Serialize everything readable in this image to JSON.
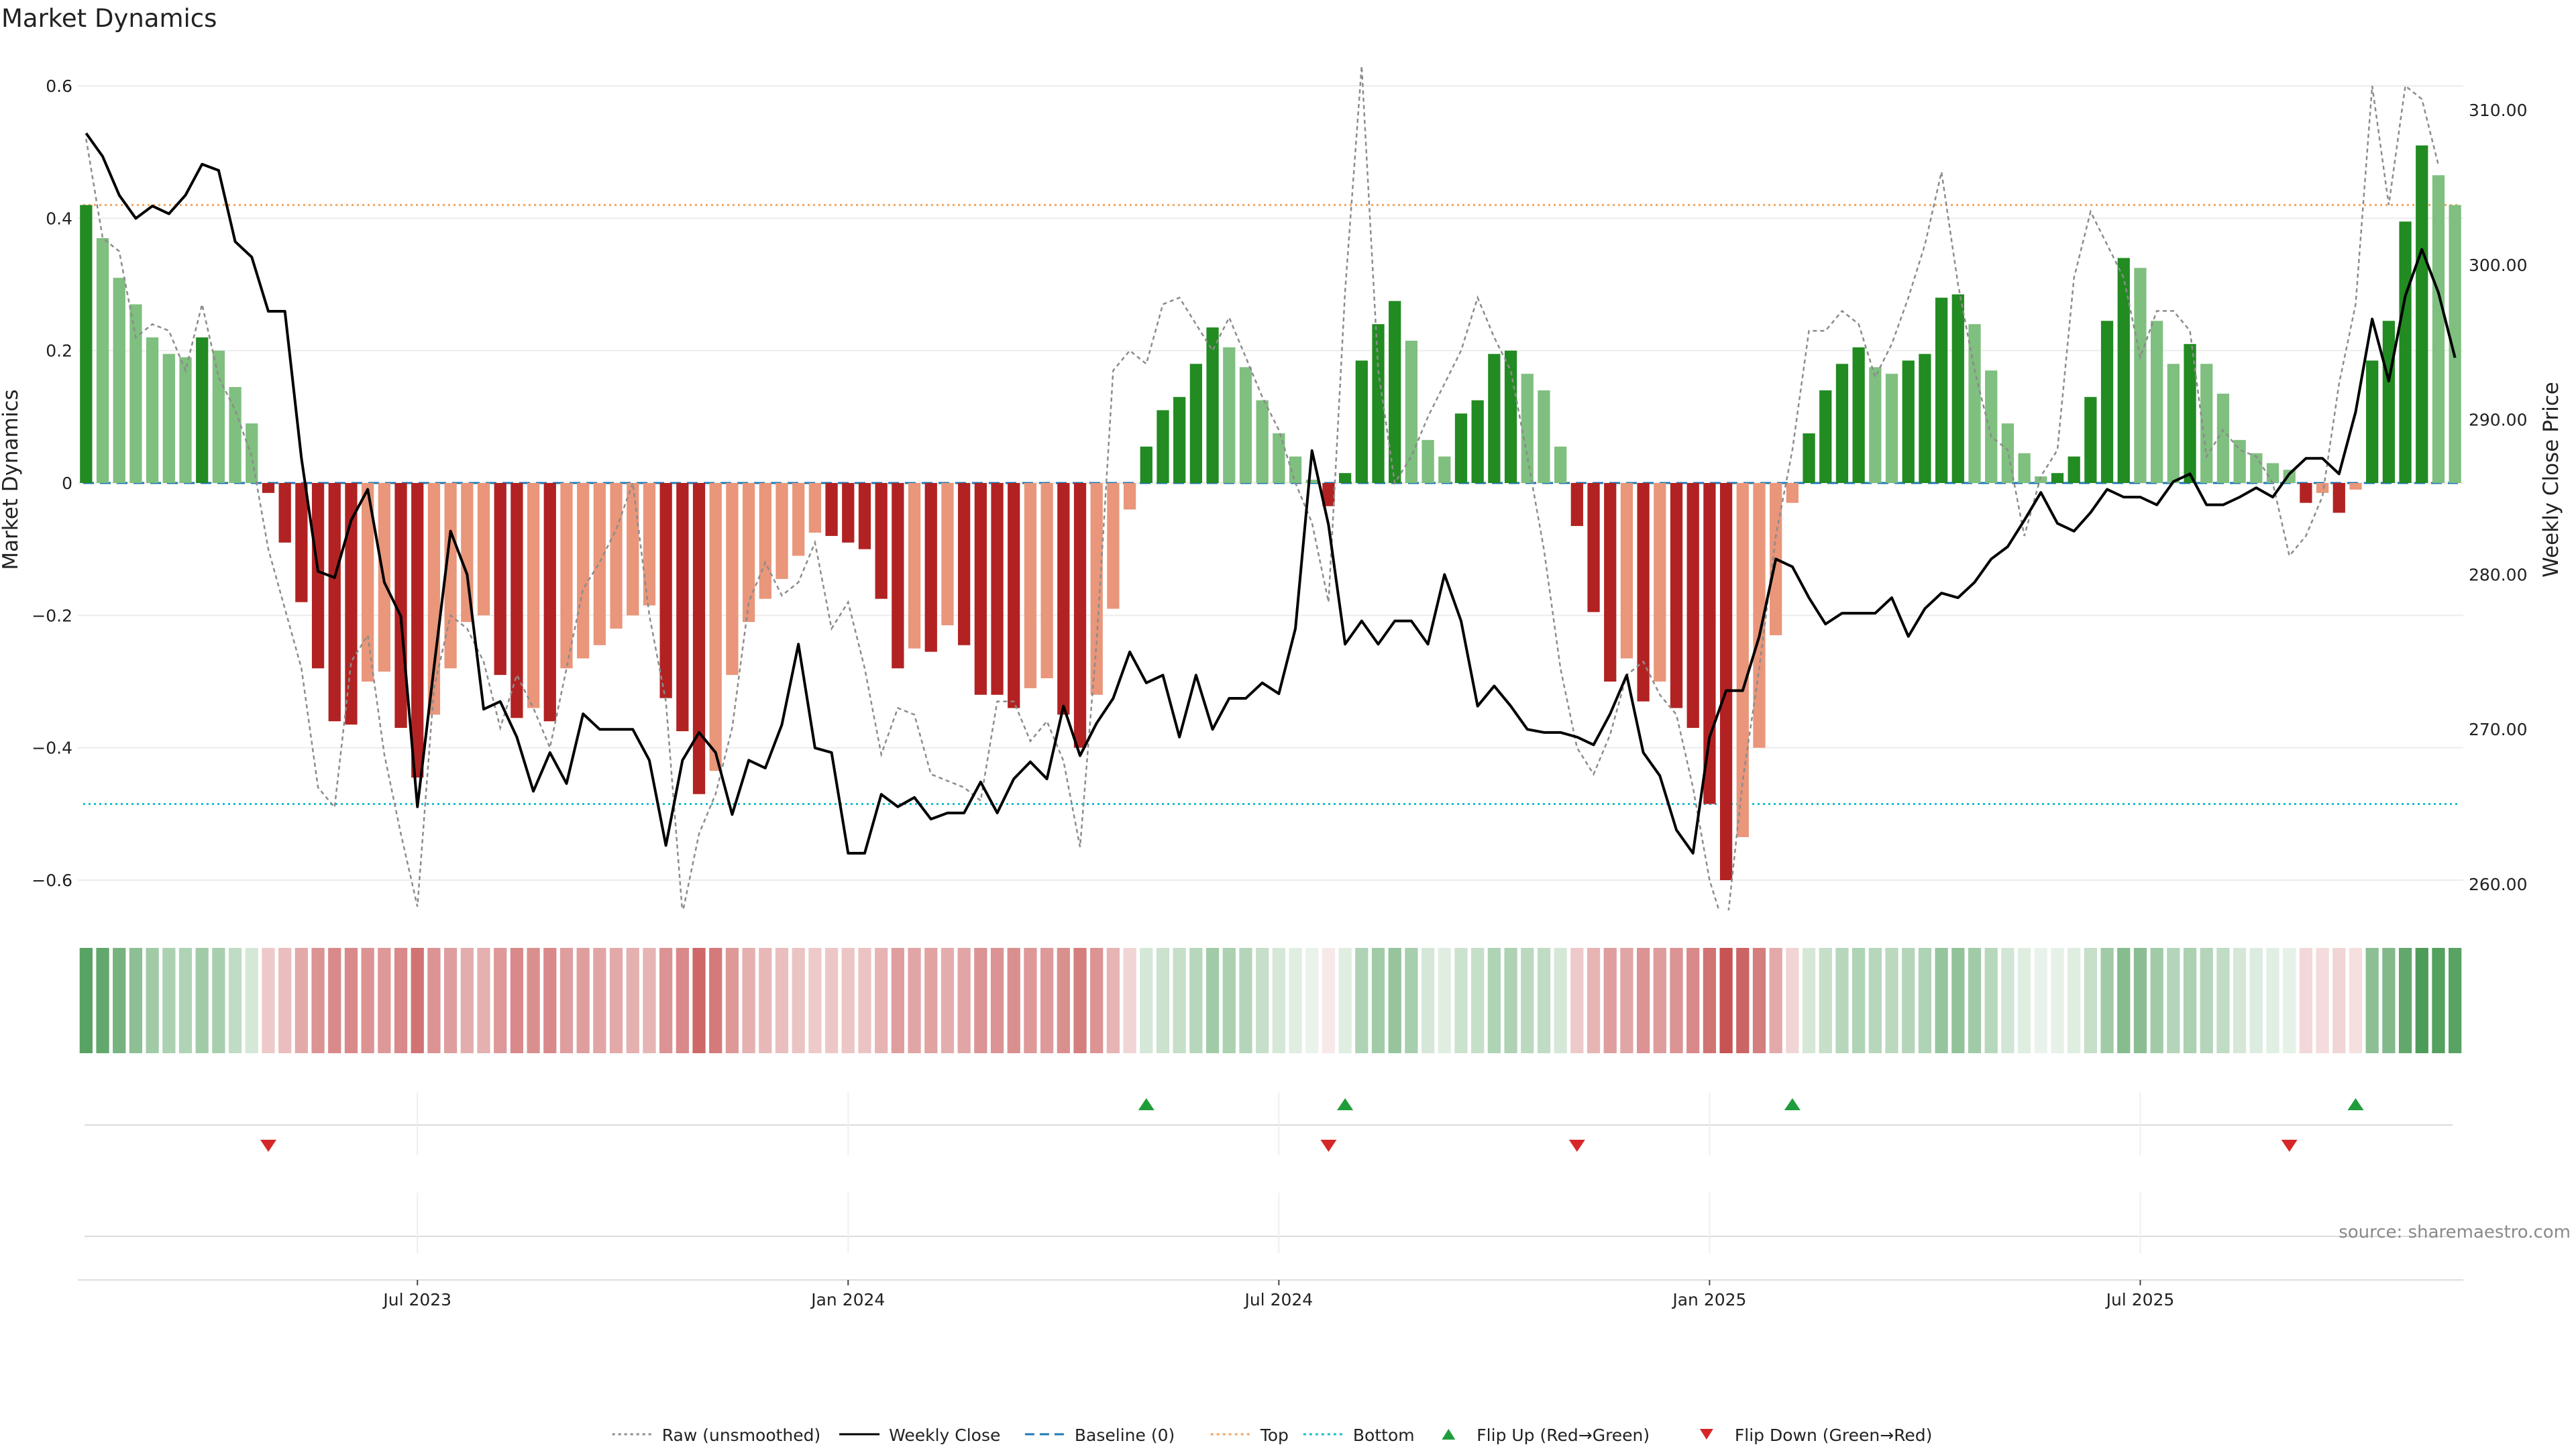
{
  "chart_data": {
    "type": "bar",
    "title": "Market Dynamics",
    "ylabel": "Market Dynamics",
    "y2label": "Weekly Close Price",
    "ylim": [
      -0.65,
      0.6
    ],
    "y2lim": [
      258.0,
      310.0
    ],
    "yticks": [
      0.6,
      0.4,
      0.2,
      0,
      -0.2,
      -0.4,
      -0.6
    ],
    "ytick_labels": [
      "0.6",
      "0.4",
      "0.2",
      "0",
      "−0.2",
      "−0.4",
      "−0.6"
    ],
    "y2ticks": [
      310,
      300,
      290,
      280,
      270,
      260
    ],
    "y2tick_labels": [
      "310.00",
      "300.00",
      "290.00",
      "280.00",
      "270.00",
      "260.00"
    ],
    "xticks": [
      {
        "index": 20,
        "label": "Jul 2023"
      },
      {
        "index": 46,
        "label": "Jan 2024"
      },
      {
        "index": 72,
        "label": "Jul 2024"
      },
      {
        "index": 98,
        "label": "Jan 2025"
      },
      {
        "index": 124,
        "label": "Jul 2025"
      }
    ],
    "reference_lines": {
      "top": 0.42,
      "bottom": -0.485,
      "baseline": 0
    },
    "colors": {
      "pos_strong": "#228b22",
      "pos_weak": "#7fbf7f",
      "neg_strong": "#b22222",
      "neg_weak": "#e9967a",
      "weekly_close": "#000000",
      "raw": "#8c8c8c",
      "baseline": "#1f77b4",
      "top": "#f4a460",
      "bottom": "#17becf",
      "flip_up": "#1f9d3a",
      "flip_down": "#d62728"
    },
    "smoothed": [
      0.42,
      0.37,
      0.31,
      0.27,
      0.22,
      0.195,
      0.19,
      0.22,
      0.2,
      0.145,
      0.09,
      -0.015,
      -0.09,
      -0.18,
      -0.28,
      -0.36,
      -0.365,
      -0.3,
      -0.285,
      -0.37,
      -0.445,
      -0.35,
      -0.28,
      -0.21,
      -0.2,
      -0.29,
      -0.355,
      -0.34,
      -0.36,
      -0.28,
      -0.265,
      -0.245,
      -0.22,
      -0.2,
      -0.185,
      -0.325,
      -0.375,
      -0.47,
      -0.435,
      -0.29,
      -0.21,
      -0.175,
      -0.145,
      -0.11,
      -0.075,
      -0.08,
      -0.09,
      -0.1,
      -0.175,
      -0.28,
      -0.25,
      -0.255,
      -0.215,
      -0.245,
      -0.32,
      -0.32,
      -0.34,
      -0.31,
      -0.295,
      -0.35,
      -0.4,
      -0.32,
      -0.19,
      -0.04,
      0.055,
      0.11,
      0.13,
      0.18,
      0.235,
      0.205,
      0.175,
      0.125,
      0.075,
      0.04,
      0.005,
      -0.035,
      0.015,
      0.185,
      0.24,
      0.275,
      0.215,
      0.065,
      0.04,
      0.105,
      0.125,
      0.195,
      0.2,
      0.165,
      0.14,
      0.055,
      -0.065,
      -0.195,
      -0.3,
      -0.265,
      -0.33,
      -0.3,
      -0.34,
      -0.37,
      -0.485,
      -0.6,
      -0.535,
      -0.4,
      -0.23,
      -0.03,
      0.075,
      0.14,
      0.18,
      0.205,
      0.175,
      0.165,
      0.185,
      0.195,
      0.28,
      0.285,
      0.24,
      0.17,
      0.09,
      0.045,
      0.01,
      0.015,
      0.04,
      0.13,
      0.245,
      0.34,
      0.325,
      0.245,
      0.18,
      0.21,
      0.18,
      0.135,
      0.065,
      0.045,
      0.03,
      0.02,
      -0.03,
      -0.015,
      -0.045,
      -0.01,
      0.185,
      0.245,
      0.395,
      0.51,
      0.465,
      0.42
    ],
    "weekly_close": [
      308.5,
      307.0,
      304.5,
      303.0,
      303.8,
      303.3,
      304.5,
      306.5,
      306.1,
      301.5,
      300.5,
      297.0,
      297.0,
      287.5,
      280.2,
      279.8,
      283.5,
      285.5,
      279.5,
      277.3,
      265.0,
      274.0,
      282.8,
      280.0,
      271.3,
      271.8,
      269.5,
      266.0,
      268.5,
      266.5,
      271.0,
      270.0,
      270.0,
      270.0,
      268.0,
      262.5,
      268.0,
      269.8,
      268.5,
      264.5,
      268.0,
      267.5,
      270.3,
      275.5,
      268.8,
      268.5,
      262.0,
      262.0,
      265.8,
      265.0,
      265.6,
      264.2,
      264.6,
      264.6,
      266.6,
      264.6,
      266.8,
      267.9,
      266.8,
      271.5,
      268.3,
      270.4,
      272.0,
      275.0,
      273.0,
      273.5,
      269.5,
      273.5,
      270.0,
      272.0,
      272.0,
      273.0,
      272.3,
      276.5,
      288.0,
      283.2,
      275.5,
      277.0,
      275.5,
      277.0,
      277.0,
      275.5,
      280.0,
      277.0,
      271.5,
      272.8,
      271.5,
      270.0,
      269.8,
      269.8,
      269.5,
      269.0,
      271.0,
      273.5,
      268.5,
      267.0,
      263.5,
      262.0,
      269.5,
      272.5,
      272.5,
      276.0,
      281.0,
      280.5,
      278.5,
      276.8,
      277.5,
      277.5,
      277.5,
      278.5,
      276.0,
      277.8,
      278.8,
      278.5,
      279.5,
      281.0,
      281.8,
      283.5,
      285.3,
      283.3,
      282.8,
      284.0,
      285.5,
      285.0,
      285.0,
      284.5,
      286.0,
      286.5,
      284.5,
      284.5,
      285.0,
      285.6,
      285.0,
      286.5,
      287.5,
      287.5,
      286.5,
      290.5,
      296.5,
      292.5,
      298.0,
      301.0,
      298.2,
      294.0
    ],
    "raw": [
      0.52,
      0.37,
      0.35,
      0.22,
      0.24,
      0.23,
      0.17,
      0.27,
      0.16,
      0.11,
      0.04,
      -0.1,
      -0.19,
      -0.28,
      -0.46,
      -0.49,
      -0.27,
      -0.23,
      -0.41,
      -0.53,
      -0.64,
      -0.31,
      -0.2,
      -0.22,
      -0.27,
      -0.37,
      -0.29,
      -0.34,
      -0.4,
      -0.28,
      -0.16,
      -0.12,
      -0.07,
      0.0,
      -0.2,
      -0.33,
      -0.65,
      -0.53,
      -0.47,
      -0.37,
      -0.18,
      -0.12,
      -0.17,
      -0.15,
      -0.09,
      -0.22,
      -0.18,
      -0.28,
      -0.41,
      -0.34,
      -0.35,
      -0.44,
      -0.45,
      -0.46,
      -0.48,
      -0.33,
      -0.33,
      -0.39,
      -0.36,
      -0.42,
      -0.55,
      -0.24,
      0.17,
      0.2,
      0.18,
      0.27,
      0.28,
      0.24,
      0.2,
      0.25,
      0.19,
      0.13,
      0.08,
      0.0,
      -0.06,
      -0.18,
      0.29,
      0.63,
      0.17,
      0.0,
      0.04,
      0.1,
      0.15,
      0.2,
      0.28,
      0.22,
      0.17,
      0.04,
      -0.1,
      -0.28,
      -0.4,
      -0.44,
      -0.38,
      -0.29,
      -0.27,
      -0.32,
      -0.35,
      -0.46,
      -0.6,
      -0.68,
      -0.45,
      -0.28,
      -0.08,
      0.05,
      0.23,
      0.23,
      0.26,
      0.24,
      0.16,
      0.21,
      0.28,
      0.36,
      0.47,
      0.3,
      0.17,
      0.07,
      0.05,
      -0.08,
      0.01,
      0.05,
      0.31,
      0.41,
      0.36,
      0.31,
      0.19,
      0.26,
      0.26,
      0.23,
      0.04,
      0.08,
      0.05,
      0.04,
      0.0,
      -0.11,
      -0.08,
      -0.02,
      0.15,
      0.27,
      0.6,
      0.42,
      0.6,
      0.58,
      0.48
    ],
    "heatmap_strength": [
      0.8,
      0.75,
      0.65,
      0.55,
      0.45,
      0.4,
      0.38,
      0.45,
      0.42,
      0.3,
      0.2,
      0.25,
      0.3,
      0.4,
      0.5,
      0.55,
      0.55,
      0.5,
      0.48,
      0.55,
      0.65,
      0.5,
      0.45,
      0.38,
      0.37,
      0.48,
      0.55,
      0.52,
      0.55,
      0.45,
      0.45,
      0.42,
      0.4,
      0.37,
      0.35,
      0.5,
      0.55,
      0.7,
      0.62,
      0.48,
      0.37,
      0.33,
      0.3,
      0.28,
      0.25,
      0.26,
      0.27,
      0.28,
      0.35,
      0.45,
      0.42,
      0.43,
      0.38,
      0.42,
      0.5,
      0.5,
      0.52,
      0.48,
      0.47,
      0.52,
      0.6,
      0.5,
      0.35,
      0.2,
      0.2,
      0.25,
      0.28,
      0.35,
      0.45,
      0.4,
      0.36,
      0.28,
      0.2,
      0.15,
      0.1,
      0.1,
      0.15,
      0.38,
      0.45,
      0.5,
      0.42,
      0.2,
      0.15,
      0.25,
      0.28,
      0.38,
      0.39,
      0.33,
      0.3,
      0.2,
      0.25,
      0.35,
      0.45,
      0.42,
      0.5,
      0.46,
      0.5,
      0.55,
      0.65,
      0.8,
      0.72,
      0.6,
      0.4,
      0.2,
      0.2,
      0.28,
      0.35,
      0.38,
      0.35,
      0.33,
      0.36,
      0.38,
      0.5,
      0.52,
      0.45,
      0.35,
      0.22,
      0.15,
      0.1,
      0.12,
      0.15,
      0.28,
      0.45,
      0.58,
      0.56,
      0.45,
      0.36,
      0.4,
      0.36,
      0.3,
      0.2,
      0.16,
      0.14,
      0.12,
      0.18,
      0.16,
      0.2,
      0.15,
      0.55,
      0.6,
      0.75,
      0.85,
      0.82,
      0.8
    ],
    "flip_up": [
      64,
      76,
      103,
      137
    ],
    "flip_down": [
      11,
      75,
      90,
      133
    ],
    "legend": [
      {
        "label": "Raw (unsmoothed)",
        "style": "dotted",
        "color": "#8c8c8c"
      },
      {
        "label": "Weekly Close",
        "style": "solid",
        "color": "#000000"
      },
      {
        "label": "Baseline (0)",
        "style": "dashed",
        "color": "#1f77b4"
      },
      {
        "label": "Top",
        "style": "dotted",
        "color": "#f4a460"
      },
      {
        "label": "Bottom",
        "style": "dotted",
        "color": "#17becf"
      },
      {
        "label": "Flip Up (Red→Green)",
        "style": "marker-up",
        "color": "#1f9d3a"
      },
      {
        "label": "Flip Down (Green→Red)",
        "style": "marker-down",
        "color": "#d62728"
      }
    ],
    "source": "source: sharemaestro.com"
  }
}
